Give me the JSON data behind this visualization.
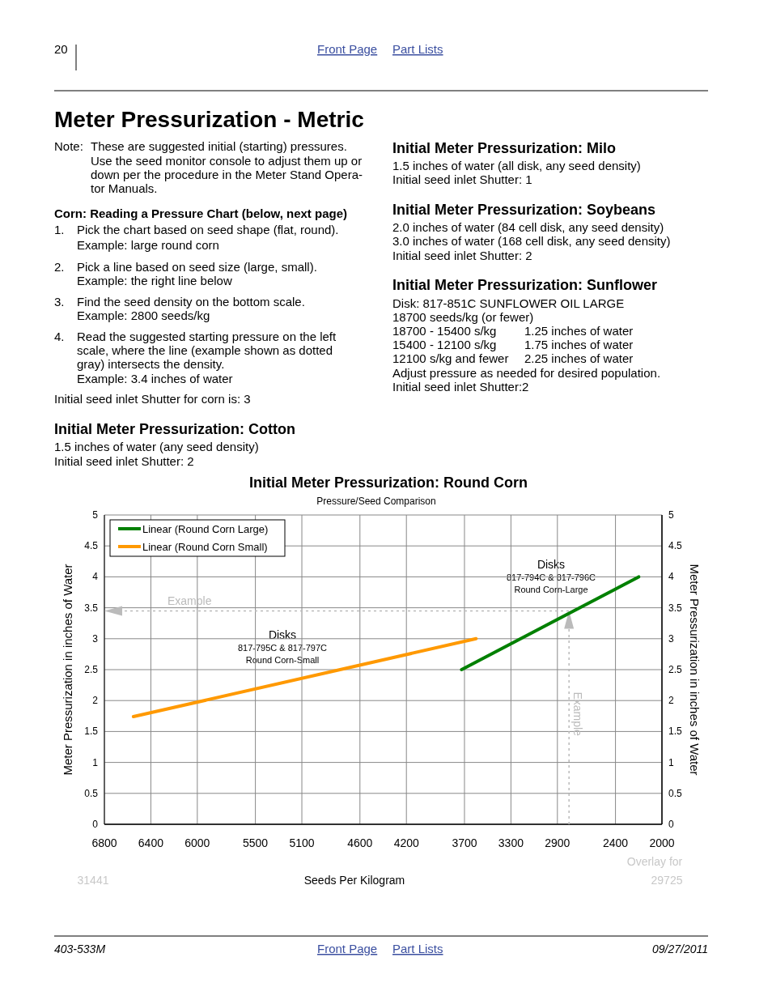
{
  "chart_data": {
    "type": "line",
    "title": "Initial Meter Pressurization: Round Corn",
    "subtitle": "Pressure/Seed Comparison",
    "xlabel": "Seeds Per Kilogram",
    "ylabel": "Meter Pressurization in inches of Water",
    "y2label": "Meter Pressurization in inches of Water",
    "xlim": [
      6800,
      2000
    ],
    "xticks": [
      6800,
      6400,
      6000,
      5500,
      5100,
      4600,
      4200,
      3700,
      3300,
      2900,
      2400,
      2000
    ],
    "ylim": [
      0,
      5
    ],
    "yticks": [
      0,
      0.5,
      1,
      1.5,
      2,
      2.5,
      3,
      3.5,
      4,
      4.5,
      5
    ],
    "y2lim": [
      0,
      5
    ],
    "y2ticks": [
      0,
      0.5,
      1,
      1.5,
      2,
      2.5,
      3,
      3.5,
      4,
      4.5,
      5
    ],
    "series": [
      {
        "name": "Linear (Round Corn Large)",
        "color": "#008000",
        "x": [
          3725,
          2200
        ],
        "values": [
          2.5,
          4.0
        ]
      },
      {
        "name": "Linear (Round Corn Small)",
        "color": "#ff9900",
        "x": [
          6550,
          3600
        ],
        "values": [
          1.74,
          3.0
        ]
      }
    ],
    "ref_lines": [
      {
        "axis": "y",
        "value": 3.45,
        "label": "Example",
        "color": "#bbbbbb",
        "line_style": "dotted"
      },
      {
        "axis": "x",
        "value": 2800,
        "label": "Example",
        "color": "#bbbbbb",
        "line_style": "dotted"
      }
    ],
    "grid": true,
    "legend": "top left",
    "marker": "none",
    "line_style": "solid",
    "annotations": [
      "Disks\n817-795C & 817-797C\nRound Corn-Small",
      "Disks\n817-794C & 817-796C\nRound Corn-Large",
      "20",
      "Front Page",
      "Part Lists",
      "Meter Pressurization - Metric",
      "Note:",
      "These are suggested initial (starting) pressures.",
      "Use the seed monitor console to adjust them up or",
      "down per the procedure in the Meter Stand Opera-",
      "tor Manuals.",
      "Corn: Reading a Pressure Chart (below, next page)",
      "1.",
      "Pick the chart based on seed shape (flat, round).",
      "Example: large round corn",
      "2.",
      "Pick a line based on seed size (large, small).",
      "Example: the right line below",
      "3.",
      "Find the seed density on the bottom scale.",
      "Example: 2800 seeds/kg",
      "4.",
      "Read the suggested starting pressure on the left",
      "scale, where the line (example shown as dotted",
      "gray) intersects the density.",
      "Example: 3.4 inches of water",
      "Initial seed inlet Shutter for corn is: 3",
      "Initial Meter Pressurization: Cotton",
      "1.5 inches of water (any seed density)",
      "Initial seed inlet Shutter: 2",
      "Initial Meter Pressurization: Milo",
      "1.5 inches of water (all disk, any seed density)",
      "Initial seed inlet Shutter: 1",
      "Initial Meter Pressurization: Soybeans",
      "2.0 inches of water (84 cell disk, any seed density)",
      "3.0 inches of water (168 cell disk, any seed density)",
      "Initial seed inlet Shutter: 2",
      "Initial Meter Pressurization: Sunflower",
      "Disk: 817-851C SUNFLOWER OIL LARGE",
      "18700 seeds/kg (or fewer)",
      "18700 - 15400 s/kg",
      "1.25 inches of water",
      "15400 - 12100 s/kg",
      "1.75 inches of water",
      "12100 s/kg and fewer",
      "2.25 inches of water",
      "Adjust pressure as needed for desired population.",
      "Initial seed inlet Shutter:2",
      "403-533M",
      "Front Page",
      "Part Lists",
      "09/27/2011",
      "31441",
      "Overlay for",
      "29725"
    ]
  }
}
